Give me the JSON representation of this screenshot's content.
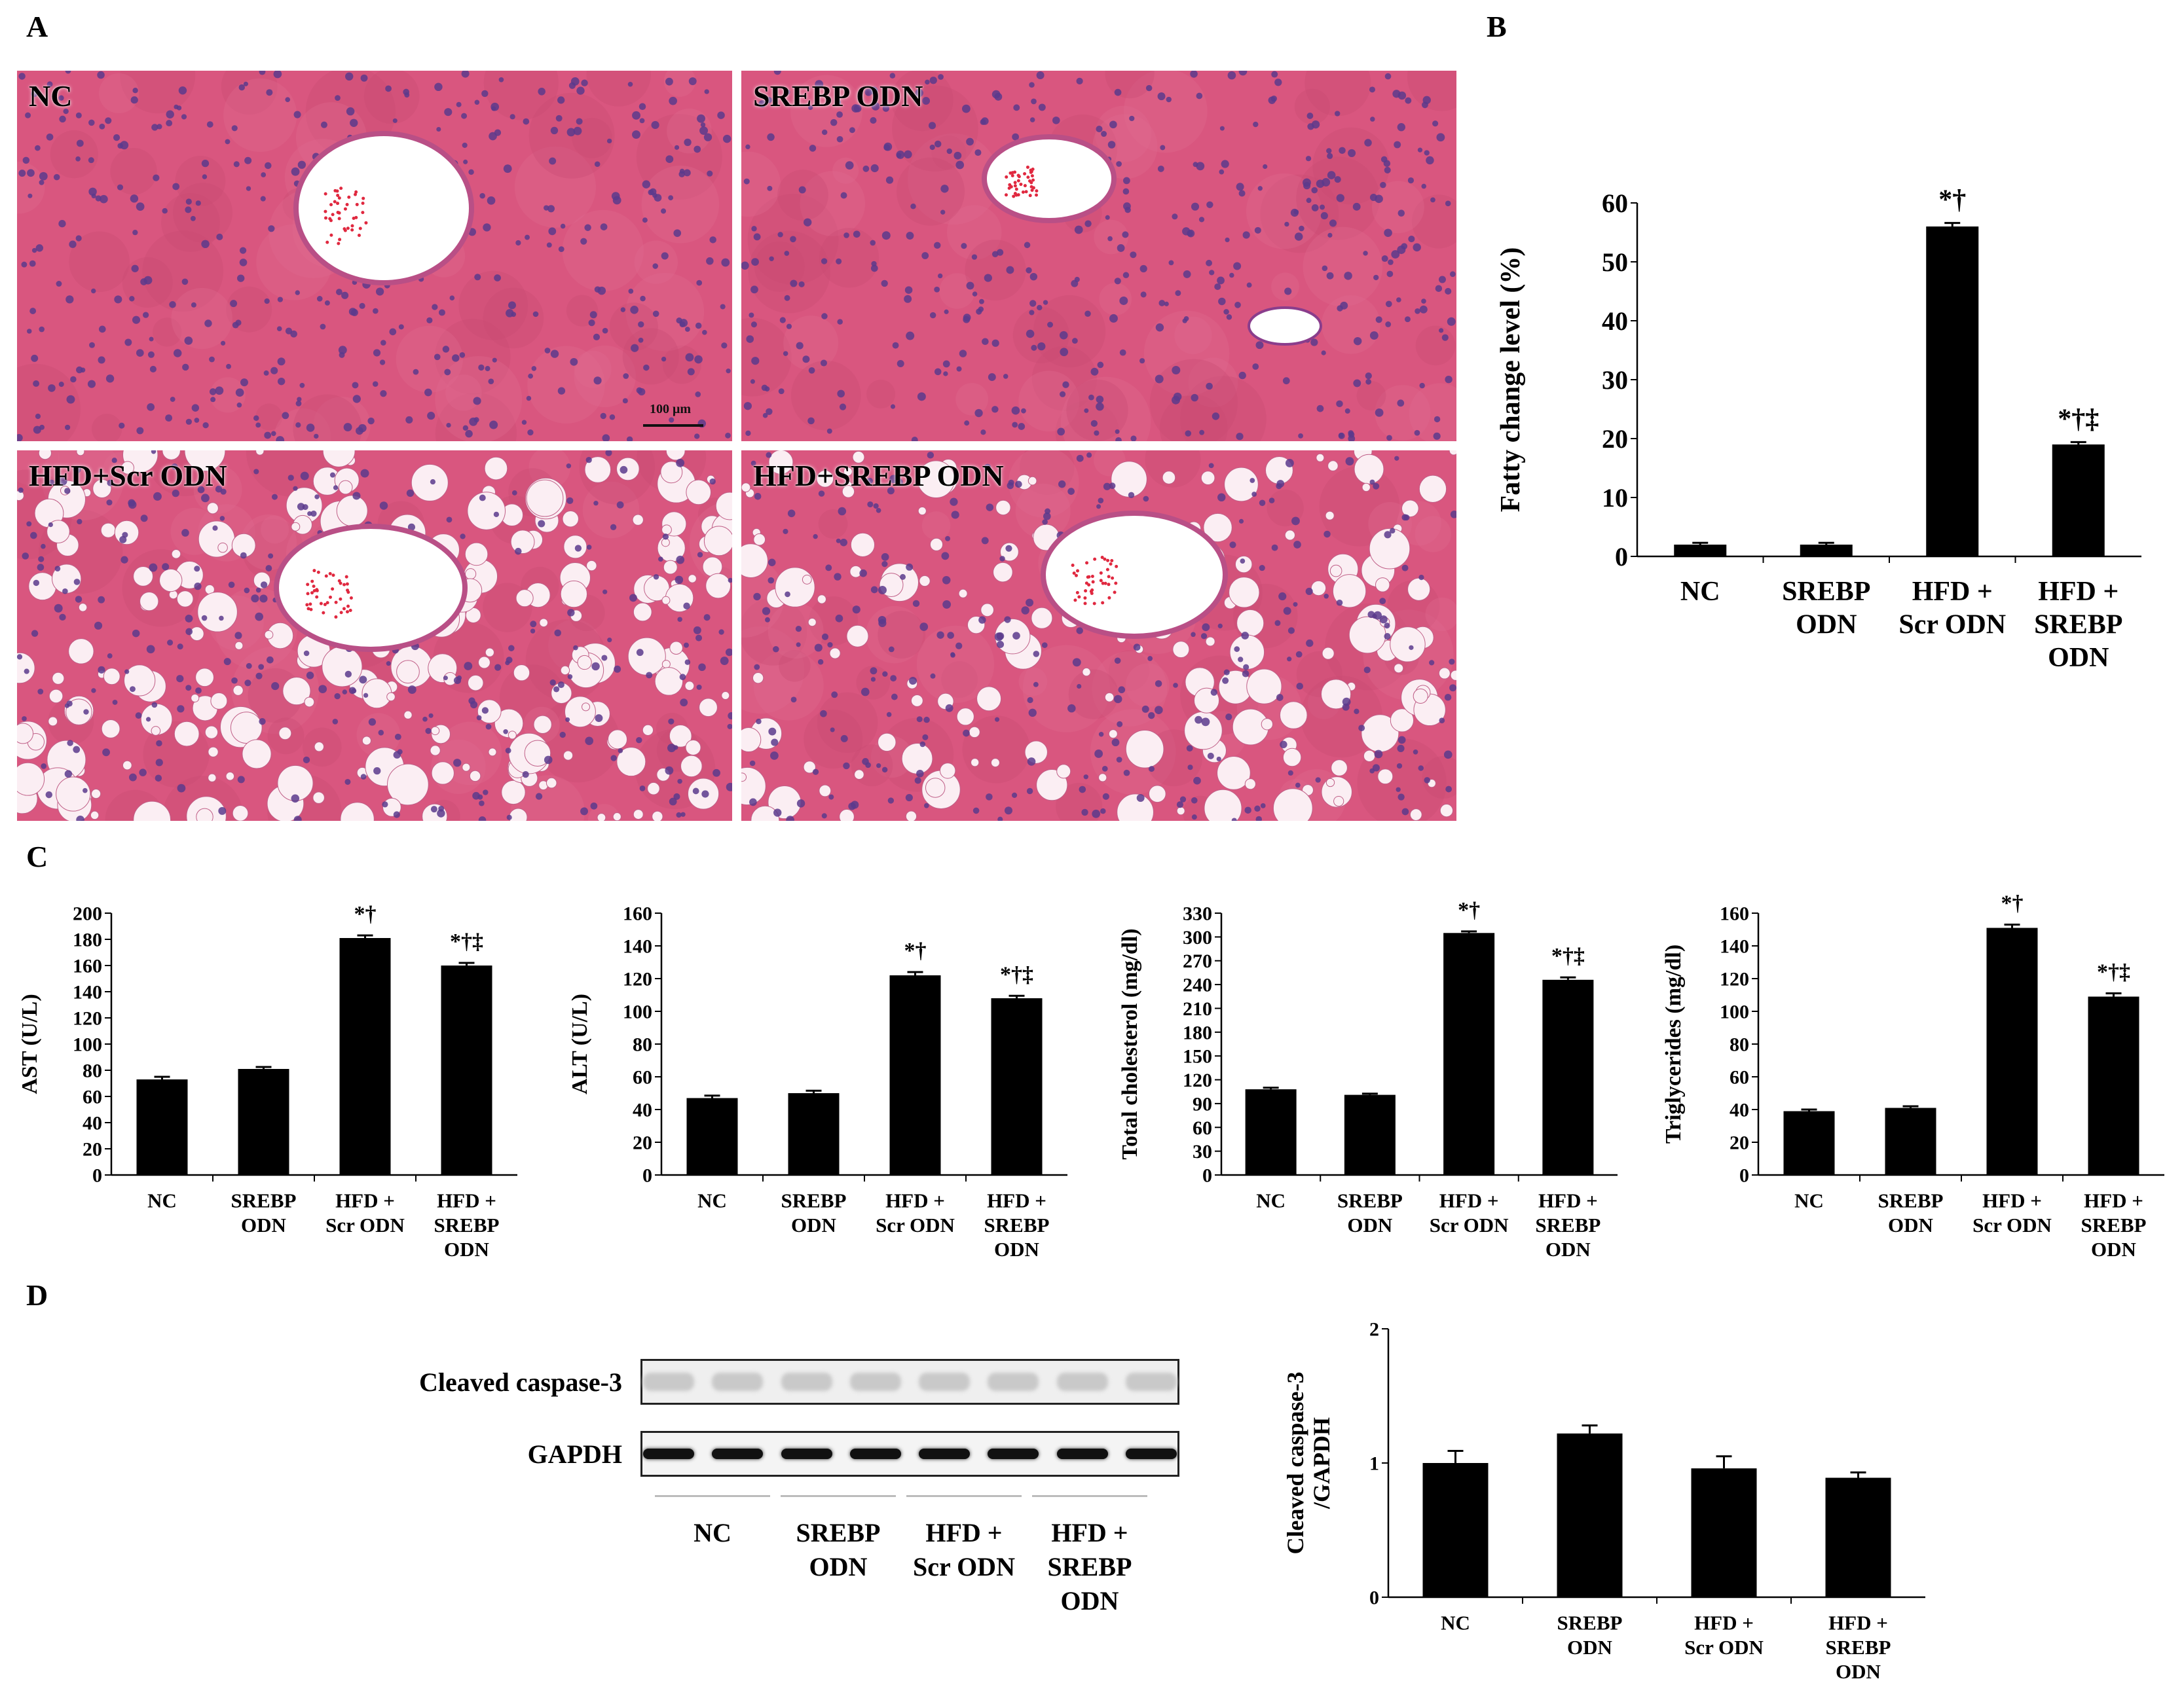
{
  "panel_letters": {
    "a": "A",
    "b": "B",
    "c": "C",
    "d": "D"
  },
  "micrographs": [
    {
      "label": "NC",
      "style": "normal",
      "scale_bar": "100 μm"
    },
    {
      "label": "SREBP ODN",
      "style": "normal"
    },
    {
      "label": "HFD+Scr ODN",
      "style": "fatty"
    },
    {
      "label": "HFD+SREBP ODN",
      "style": "fatty-mild"
    }
  ],
  "colors": {
    "bar": "#000000",
    "tissue": "#d9567f",
    "nuclei": "#5b3a8c",
    "lumen": "#ffffff",
    "rbc": "#e0283f"
  },
  "chart_data": [
    {
      "id": "fatty",
      "type": "bar",
      "panel": "B",
      "ylabel": "Fatty change level (%)",
      "ylim": [
        0,
        60
      ],
      "yticks": [
        0,
        10,
        20,
        30,
        40,
        50,
        60
      ],
      "categories": [
        "NC",
        "SREBP\nODN",
        "HFD +\nScr ODN",
        "HFD +\nSREBP\nODN"
      ],
      "values": [
        2,
        2,
        56,
        19
      ],
      "errors": [
        0.3,
        0.3,
        0.6,
        0.4
      ],
      "annotations": [
        "",
        "",
        "*†",
        "*†‡"
      ]
    },
    {
      "id": "ast",
      "type": "bar",
      "panel": "C",
      "ylabel": "AST (U/L)",
      "ylim": [
        0,
        200
      ],
      "yticks": [
        0,
        20,
        40,
        60,
        80,
        100,
        120,
        140,
        160,
        180,
        200
      ],
      "categories": [
        "NC",
        "SREBP\nODN",
        "HFD +\nScr ODN",
        "HFD +\nSREBP\nODN"
      ],
      "values": [
        73,
        81,
        181,
        160
      ],
      "errors": [
        2,
        1.5,
        2,
        2
      ],
      "annotations": [
        "",
        "",
        "*†",
        "*†‡"
      ]
    },
    {
      "id": "alt",
      "type": "bar",
      "panel": "C",
      "ylabel": "ALT (U/L)",
      "ylim": [
        0,
        160
      ],
      "yticks": [
        0,
        20,
        40,
        60,
        80,
        100,
        120,
        140,
        160
      ],
      "categories": [
        "NC",
        "SREBP\nODN",
        "HFD +\nScr ODN",
        "HFD +\nSREBP\nODN"
      ],
      "values": [
        47,
        50,
        122,
        108
      ],
      "errors": [
        1.5,
        1.5,
        2,
        1.5
      ],
      "annotations": [
        "",
        "",
        "*†",
        "*†‡"
      ]
    },
    {
      "id": "chol",
      "type": "bar",
      "panel": "C",
      "ylabel": "Total cholesterol (mg/dl)",
      "ylim": [
        0,
        330
      ],
      "yticks": [
        0,
        30,
        60,
        90,
        120,
        150,
        180,
        210,
        240,
        270,
        300,
        330
      ],
      "categories": [
        "NC",
        "SREBP\nODN",
        "HFD +\nScr ODN",
        "HFD +\nSREBP\nODN"
      ],
      "values": [
        108,
        101,
        305,
        246
      ],
      "errors": [
        2,
        1.5,
        2,
        3
      ],
      "annotations": [
        "",
        "",
        "*†",
        "*†‡"
      ]
    },
    {
      "id": "tg",
      "type": "bar",
      "panel": "C",
      "ylabel": "Triglycerides (mg/dl)",
      "ylim": [
        0,
        160
      ],
      "yticks": [
        0,
        20,
        40,
        60,
        80,
        100,
        120,
        140,
        160
      ],
      "categories": [
        "NC",
        "SREBP\nODN",
        "HFD +\nScr ODN",
        "HFD +\nSREBP\nODN"
      ],
      "values": [
        39,
        41,
        151,
        109
      ],
      "errors": [
        1,
        1,
        2,
        2
      ],
      "annotations": [
        "",
        "",
        "*†",
        "*†‡"
      ]
    },
    {
      "id": "casp",
      "type": "bar",
      "panel": "D",
      "ylabel": "Cleaved caspase-3\n/GAPDH",
      "ylim": [
        0,
        2
      ],
      "yticks": [
        0,
        1,
        2
      ],
      "categories": [
        "NC",
        "SREBP\nODN",
        "HFD +\nScr ODN",
        "HFD +\nSREBP\nODN"
      ],
      "values": [
        1.0,
        1.22,
        0.96,
        0.89
      ],
      "errors": [
        0.09,
        0.06,
        0.09,
        0.04
      ],
      "annotations": [
        "",
        "",
        "",
        ""
      ]
    }
  ],
  "blot": {
    "rows": [
      {
        "label": "Cleaved caspase-3",
        "intensity": "faint"
      },
      {
        "label": "GAPDH",
        "intensity": "strong"
      }
    ],
    "lane_count": 8,
    "group_labels": [
      "NC",
      "SREBP\nODN",
      "HFD +\nScr ODN",
      "HFD +\nSREBP\nODN"
    ]
  }
}
